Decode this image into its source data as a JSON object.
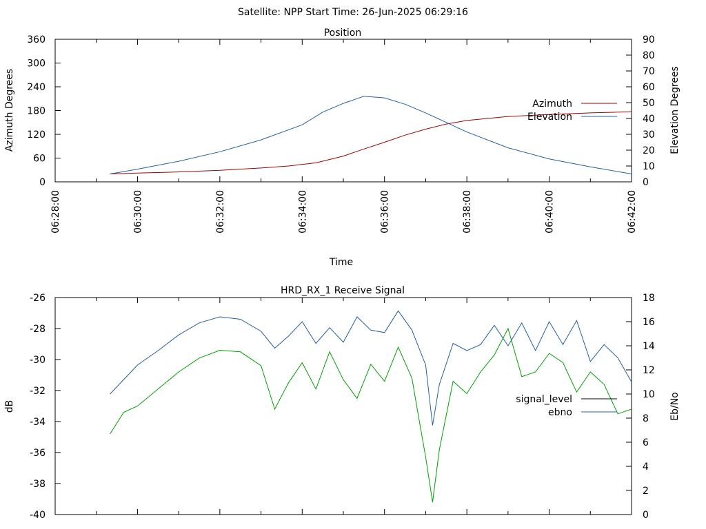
{
  "header": {
    "title": "Satellite: NPP    Start Time: 26-Jun-2025 06:29:16"
  },
  "chart_data": [
    {
      "type": "line",
      "title": "Position",
      "xlabel": "Time",
      "ylabel": "Azimuth Degrees",
      "y2label": "Elevation Degrees",
      "x_ticks": [
        "06:28:00",
        "06:30:00",
        "06:32:00",
        "06:34:00",
        "06:36:00",
        "06:38:00",
        "06:40:00",
        "06:42:00"
      ],
      "xlim": [
        "06:28:00",
        "06:42:00"
      ],
      "ylim": [
        0,
        360
      ],
      "y_ticks": [
        0,
        60,
        120,
        180,
        240,
        300,
        360
      ],
      "y2lim": [
        0,
        90
      ],
      "y2_ticks": [
        0,
        10,
        20,
        30,
        40,
        50,
        60,
        70,
        80,
        90
      ],
      "legend": "right",
      "grid": false,
      "series": [
        {
          "name": "Azimuth",
          "axis": "left",
          "color": "#a00000",
          "x": [
            "06:29:20",
            "06:30:00",
            "06:31:00",
            "06:32:00",
            "06:33:00",
            "06:33:40",
            "06:34:20",
            "06:35:00",
            "06:35:30",
            "06:36:00",
            "06:36:30",
            "06:37:00",
            "06:37:30",
            "06:38:00",
            "06:39:00",
            "06:40:00",
            "06:41:00",
            "06:42:00"
          ],
          "values": [
            20,
            22,
            25,
            29,
            35,
            40,
            48,
            65,
            83,
            100,
            118,
            133,
            146,
            155,
            165,
            170,
            174,
            177
          ]
        },
        {
          "name": "Elevation",
          "axis": "right",
          "color": "#2060a0",
          "x": [
            "06:29:20",
            "06:30:00",
            "06:31:00",
            "06:32:00",
            "06:33:00",
            "06:34:00",
            "06:34:30",
            "06:35:00",
            "06:35:30",
            "06:36:00",
            "06:36:30",
            "06:37:00",
            "06:37:30",
            "06:38:00",
            "06:39:00",
            "06:40:00",
            "06:41:00",
            "06:42:00"
          ],
          "values": [
            5,
            8,
            13,
            19,
            26.5,
            36,
            44,
            49.5,
            54,
            53,
            49,
            43.5,
            37.5,
            31.5,
            21.5,
            14.5,
            9.5,
            5
          ]
        }
      ]
    },
    {
      "type": "line",
      "title": "HRD_RX_1 Receive Signal",
      "xlabel": "",
      "ylabel": "dB",
      "y2label": "Eb/No",
      "xlim": [
        "06:28:00",
        "06:42:00"
      ],
      "ylim": [
        -40,
        -26
      ],
      "y_ticks": [
        -40,
        -38,
        -36,
        -34,
        -32,
        -30,
        -28,
        -26
      ],
      "y2lim": [
        0,
        18
      ],
      "y2_ticks": [
        0,
        2,
        4,
        6,
        8,
        10,
        12,
        14,
        16,
        18
      ],
      "legend": "right",
      "grid": false,
      "series": [
        {
          "name": "signal_level",
          "axis": "left",
          "color": "#000000",
          "x": [],
          "values": []
        },
        {
          "name": "ebno",
          "axis": "right",
          "color": "#2060a0",
          "x": [
            "06:29:20",
            "06:29:40",
            "06:30:00",
            "06:30:30",
            "06:31:00",
            "06:31:30",
            "06:32:00",
            "06:32:30",
            "06:33:00",
            "06:33:20",
            "06:33:40",
            "06:34:00",
            "06:34:20",
            "06:34:40",
            "06:35:00",
            "06:35:20",
            "06:35:40",
            "06:36:00",
            "06:36:20",
            "06:36:40",
            "06:37:00",
            "06:37:10",
            "06:37:20",
            "06:37:40",
            "06:38:00",
            "06:38:20",
            "06:38:40",
            "06:39:00",
            "06:39:20",
            "06:39:40",
            "06:40:00",
            "06:40:20",
            "06:40:40",
            "06:41:00",
            "06:41:20",
            "06:41:40",
            "06:42:00"
          ],
          "values": [
            10,
            11.2,
            12.4,
            13.6,
            14.9,
            15.9,
            16.4,
            16.2,
            15.2,
            13.8,
            14.8,
            16.0,
            14.2,
            15.5,
            14.3,
            16.4,
            15.3,
            15.1,
            16.9,
            15.3,
            12.4,
            7.4,
            10.8,
            14.2,
            13.6,
            14.1,
            15.7,
            14.0,
            15.9,
            13.6,
            16.0,
            14.1,
            16.1,
            12.7,
            14.1,
            13.0,
            11.0
          ]
        },
        {
          "name": "",
          "axis": "left",
          "color": "#00a000",
          "x": [
            "06:29:20",
            "06:29:40",
            "06:30:00",
            "06:30:30",
            "06:31:00",
            "06:31:30",
            "06:32:00",
            "06:32:30",
            "06:33:00",
            "06:33:20",
            "06:33:40",
            "06:34:00",
            "06:34:20",
            "06:34:40",
            "06:35:00",
            "06:35:20",
            "06:35:40",
            "06:36:00",
            "06:36:20",
            "06:36:40",
            "06:36:50",
            "06:37:00",
            "06:37:10",
            "06:37:20",
            "06:37:40",
            "06:38:00",
            "06:38:20",
            "06:38:40",
            "06:39:00",
            "06:39:20",
            "06:39:40",
            "06:40:00",
            "06:40:20",
            "06:40:40",
            "06:41:00",
            "06:41:20",
            "06:41:40",
            "06:42:00"
          ],
          "values": [
            -34.8,
            -33.4,
            -33.0,
            -31.9,
            -30.8,
            -29.9,
            -29.4,
            -29.5,
            -30.4,
            -33.2,
            -31.5,
            -30.2,
            -31.9,
            -29.5,
            -31.3,
            -32.5,
            -30.3,
            -31.4,
            -29.2,
            -31.2,
            -33.8,
            -36.3,
            -39.2,
            -35.8,
            -31.4,
            -32.2,
            -30.8,
            -29.7,
            -28.0,
            -31.1,
            -30.8,
            -29.6,
            -30.2,
            -32.1,
            -30.8,
            -31.6,
            -33.5,
            -33.2
          ]
        }
      ]
    }
  ]
}
